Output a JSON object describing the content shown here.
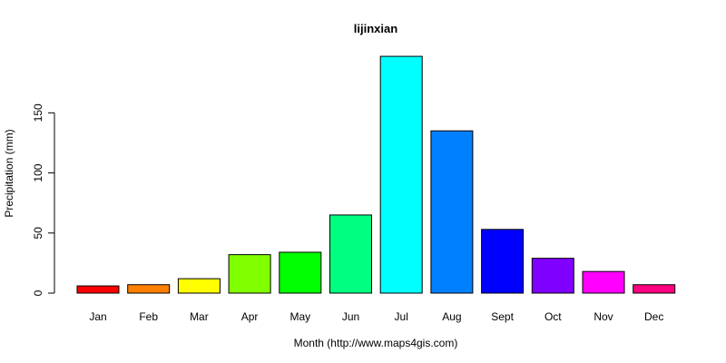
{
  "chart_data": {
    "type": "bar",
    "title": "lijinxian",
    "xlabel": "Month (http://www.maps4gis.com)",
    "ylabel": "Precipitation (mm)",
    "categories": [
      "Jan",
      "Feb",
      "Mar",
      "Apr",
      "May",
      "Jun",
      "Jul",
      "Aug",
      "Sept",
      "Oct",
      "Nov",
      "Dec"
    ],
    "values": [
      6,
      7,
      12,
      32,
      34,
      65,
      197,
      135,
      53,
      29,
      18,
      7
    ],
    "colors": [
      "#FF0000",
      "#FF8000",
      "#FFFF00",
      "#80FF00",
      "#00FF00",
      "#00FF80",
      "#00FFFF",
      "#0080FF",
      "#0000FF",
      "#8000FF",
      "#FF00FF",
      "#FF0080"
    ],
    "yticks": [
      0,
      50,
      100,
      150
    ],
    "ylim": [
      0,
      197
    ],
    "grid": false,
    "legend": "none"
  }
}
